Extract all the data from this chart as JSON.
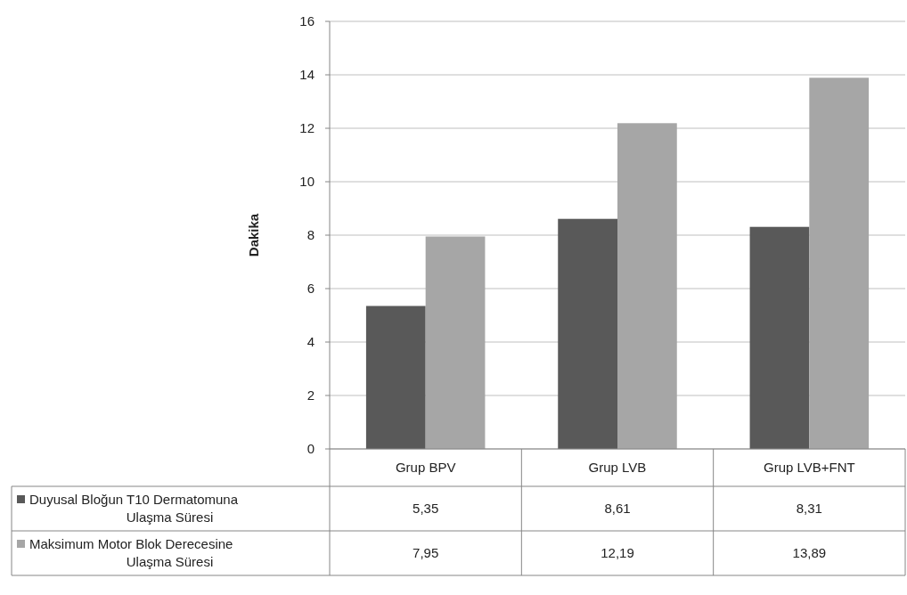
{
  "chart_data": {
    "type": "bar",
    "ylabel": "Dakika",
    "categories": [
      "Grup BPV",
      "Grup LVB",
      "Grup LVB+FNT"
    ],
    "series": [
      {
        "name": "Duyusal Bloğun T10 Dermatomuna Ulaşma Süresi",
        "color": "#595959",
        "values": [
          5.35,
          8.61,
          8.31
        ],
        "value_labels": [
          "5,35",
          "8,61",
          "8,31"
        ]
      },
      {
        "name": "Maksimum Motor Blok Derecesine Ulaşma Süresi",
        "color": "#a6a6a6",
        "values": [
          7.95,
          12.19,
          13.89
        ],
        "value_labels": [
          "7,95",
          "12,19",
          "13,89"
        ]
      }
    ],
    "ylim": [
      0,
      16
    ],
    "yticks": [
      0,
      2,
      4,
      6,
      8,
      10,
      12,
      14,
      16
    ],
    "grid": "y",
    "legend": "bottom left"
  }
}
